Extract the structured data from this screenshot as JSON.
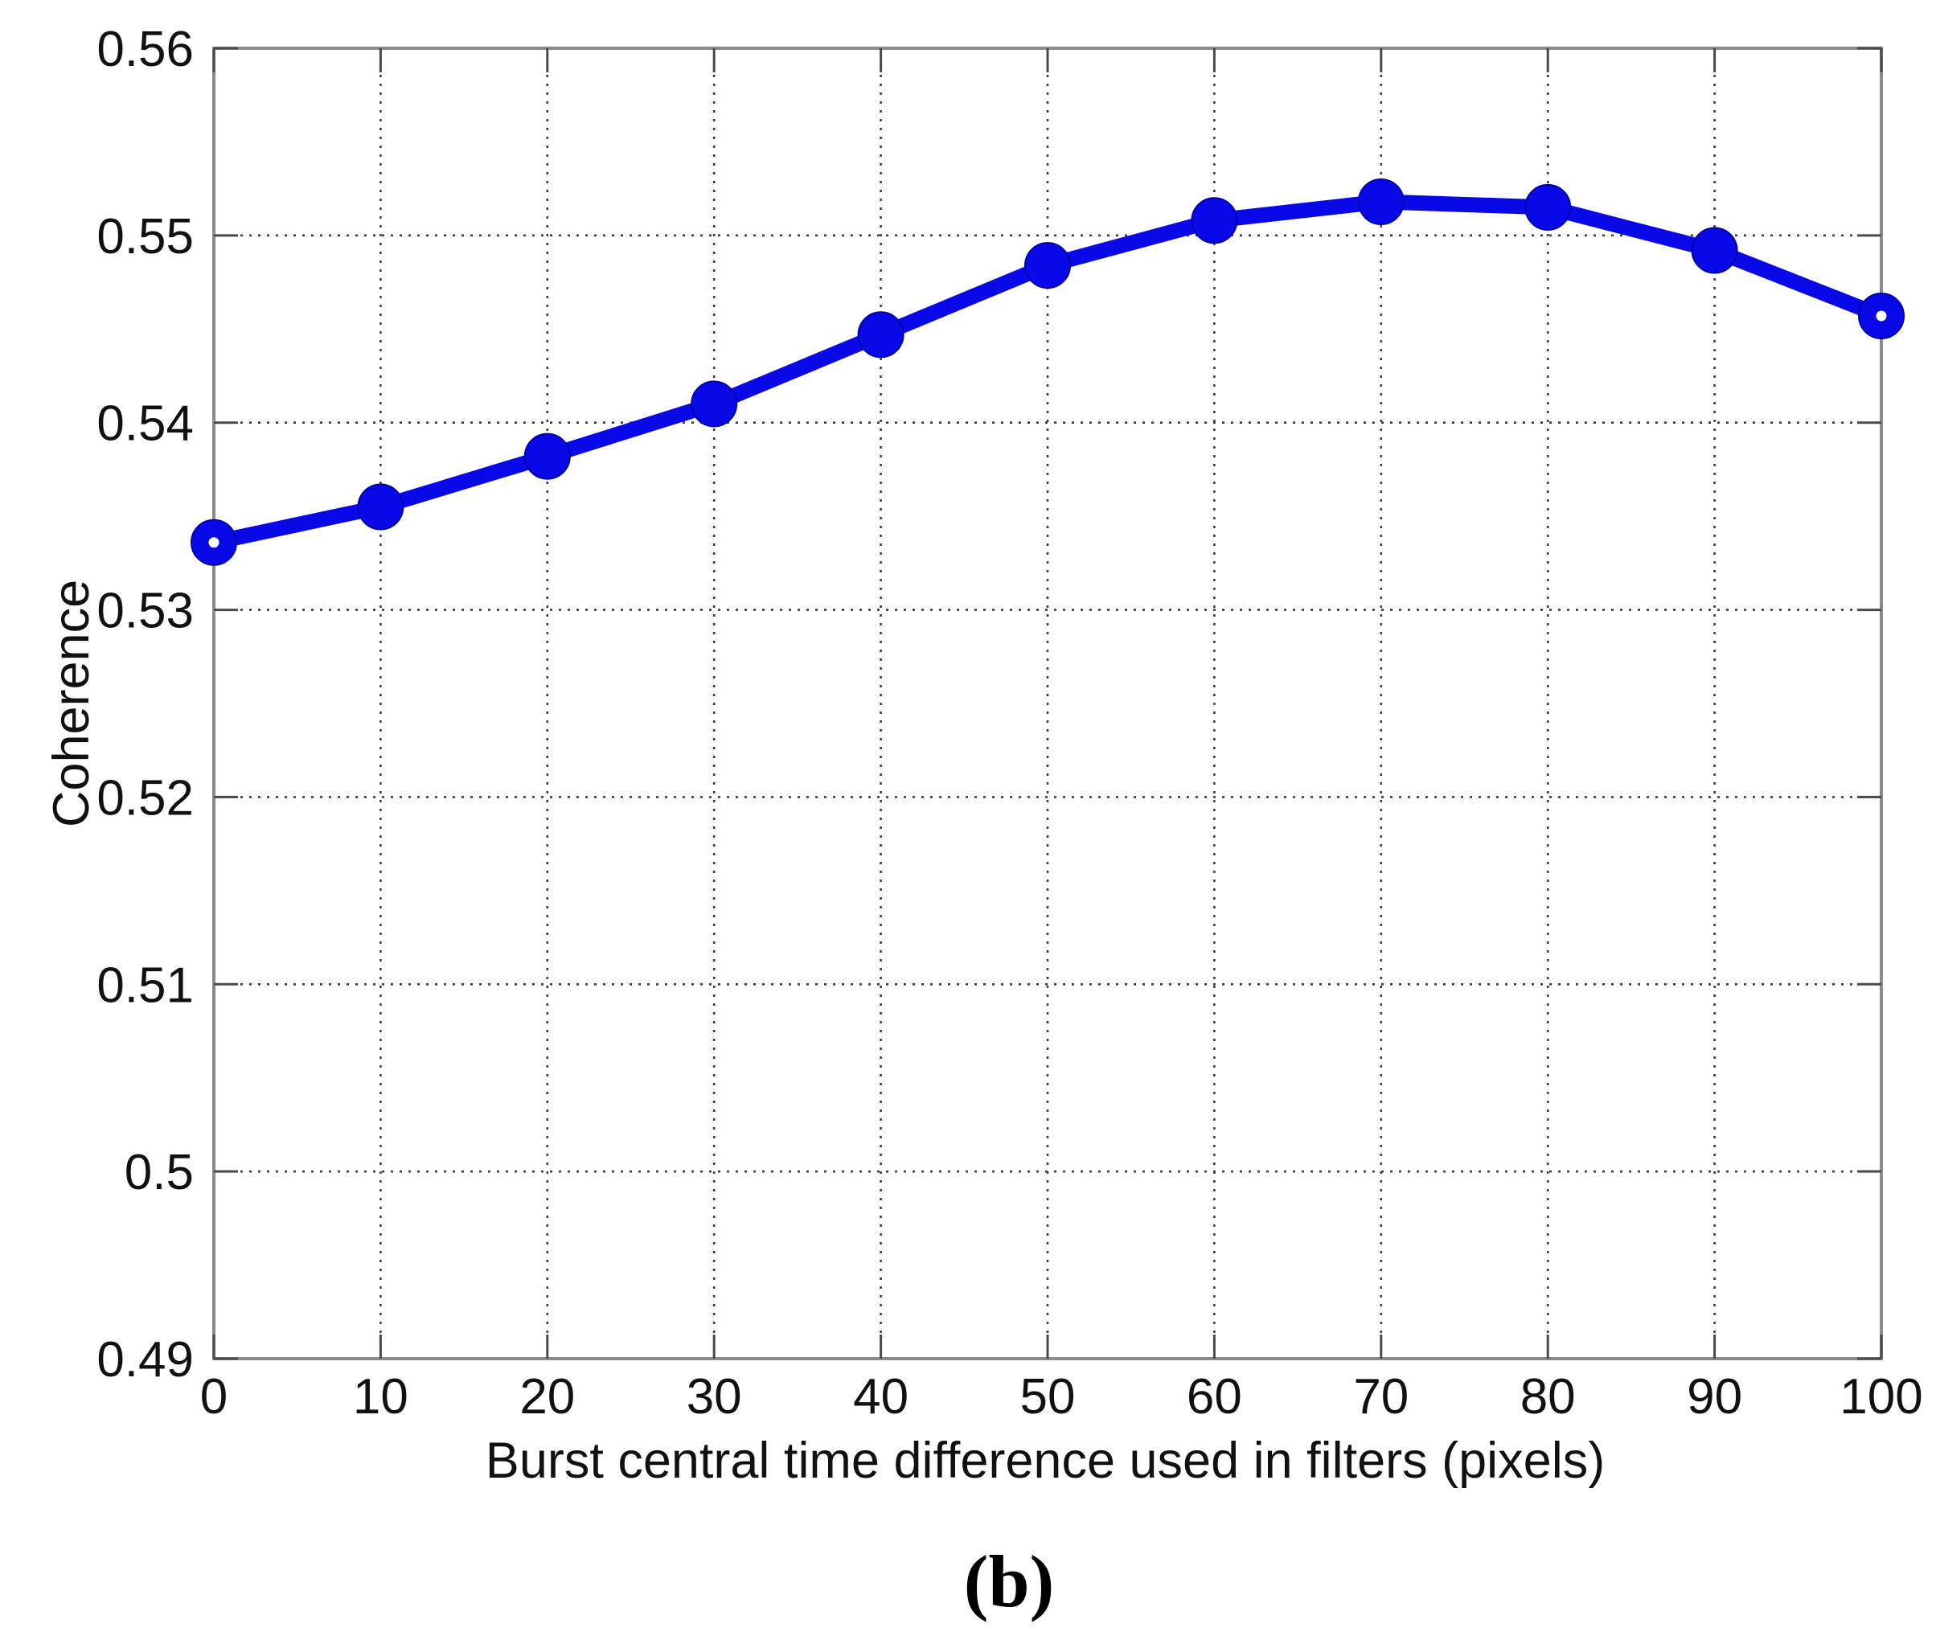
{
  "figure": {
    "caption": "(b)"
  },
  "chart_data": {
    "type": "line",
    "title": "",
    "xlabel": "Burst central time difference used in filters (pixels)",
    "ylabel": "Coherence",
    "x": [
      0,
      10,
      20,
      30,
      40,
      50,
      60,
      70,
      80,
      90,
      100
    ],
    "series": [
      {
        "name": "coherence",
        "values": [
          0.5336,
          0.5355,
          0.5382,
          0.541,
          0.5447,
          0.5484,
          0.5508,
          0.5518,
          0.5515,
          0.5492,
          0.5457
        ]
      }
    ],
    "xlim": [
      0,
      100
    ],
    "ylim": [
      0.49,
      0.56
    ],
    "xticks": {
      "values": [
        0,
        10,
        20,
        30,
        40,
        50,
        60,
        70,
        80,
        90,
        100
      ],
      "labels": [
        "0",
        "10",
        "20",
        "30",
        "40",
        "50",
        "60",
        "70",
        "80",
        "90",
        "100"
      ]
    },
    "yticks": {
      "values": [
        0.49,
        0.5,
        0.51,
        0.52,
        0.53,
        0.54,
        0.55,
        0.56
      ],
      "labels": [
        "0.49",
        "0.5",
        "0.51",
        "0.52",
        "0.53",
        "0.54",
        "0.55",
        "0.56"
      ]
    },
    "grid": true,
    "legend": false,
    "marker": "filled-circle",
    "endpoint_marker_hole": true,
    "colors": {
      "line": "#0808e8",
      "marker": "#0808e8",
      "marker_hole": "#ffffff",
      "frame": "#8a8a8a",
      "grid": "#3c3c3c",
      "tick": "#4a4a4a",
      "text": "#111111"
    }
  }
}
